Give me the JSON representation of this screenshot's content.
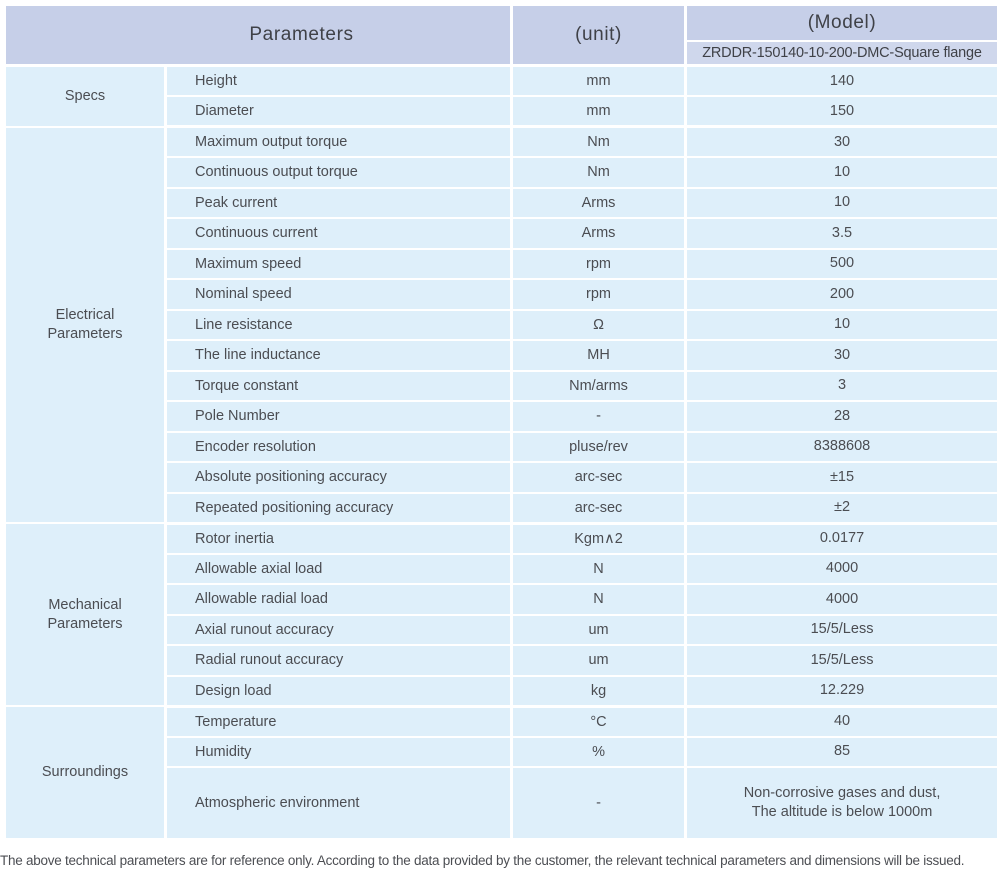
{
  "header": {
    "parameters_label": "Parameters",
    "unit_label": "(unit)",
    "model_label": "(Model)",
    "model_value": "ZRDDR-150140-10-200-DMC-Square flange"
  },
  "sections": [
    {
      "category": "Specs",
      "rows": [
        {
          "param": "Height",
          "unit": "mm",
          "value": "140"
        },
        {
          "param": "Diameter",
          "unit": "mm",
          "value": "150"
        }
      ]
    },
    {
      "category": "Electrical\nParameters",
      "rows": [
        {
          "param": "Maximum output torque",
          "unit": "Nm",
          "value": "30"
        },
        {
          "param": "Continuous output torque",
          "unit": "Nm",
          "value": "10"
        },
        {
          "param": "Peak current",
          "unit": "Arms",
          "value": "10"
        },
        {
          "param": "Continuous current",
          "unit": "Arms",
          "value": "3.5"
        },
        {
          "param": "Maximum speed",
          "unit": "rpm",
          "value": "500"
        },
        {
          "param": "Nominal speed",
          "unit": "rpm",
          "value": "200"
        },
        {
          "param": "Line resistance",
          "unit": "Ω",
          "value": "10"
        },
        {
          "param": "The line inductance",
          "unit": "MH",
          "value": "30"
        },
        {
          "param": "Torque constant",
          "unit": "Nm/arms",
          "value": "3"
        },
        {
          "param": "Pole Number",
          "unit": "-",
          "value": "28"
        },
        {
          "param": "Encoder resolution",
          "unit": "pluse/rev",
          "value": "8388608"
        },
        {
          "param": "Absolute positioning accuracy",
          "unit": "arc-sec",
          "value": "±15"
        },
        {
          "param": "Repeated positioning accuracy",
          "unit": "arc-sec",
          "value": "±2"
        }
      ]
    },
    {
      "category": "Mechanical\nParameters",
      "rows": [
        {
          "param": "Rotor inertia",
          "unit": "Kgm∧2",
          "value": "0.0177"
        },
        {
          "param": "Allowable axial load",
          "unit": "N",
          "value": "4000"
        },
        {
          "param": "Allowable radial load",
          "unit": "N",
          "value": "4000"
        },
        {
          "param": "Axial runout accuracy",
          "unit": "um",
          "value": "15/5/Less"
        },
        {
          "param": "Radial runout accuracy",
          "unit": "um",
          "value": "15/5/Less"
        },
        {
          "param": "Design load",
          "unit": "kg",
          "value": "12.229"
        }
      ]
    },
    {
      "category": "Surroundings",
      "rows": [
        {
          "param": "Temperature",
          "unit": "°C",
          "value": "40"
        },
        {
          "param": "Humidity",
          "unit": "%",
          "value": "85"
        },
        {
          "param": "Atmospheric environment",
          "unit": "-",
          "value": "Non-corrosive gases and dust,\nThe altitude is below 1000m"
        }
      ]
    }
  ],
  "footer": {
    "note": "The above technical parameters are for reference only. According to the data provided by the customer, the relevant technical parameters and dimensions will be issued."
  },
  "colors": {
    "header_bg": "#c6cfe8",
    "header_sub_bg": "#cfd7ec",
    "cell_bg": "#deeffa",
    "text": "#4b4d52"
  }
}
